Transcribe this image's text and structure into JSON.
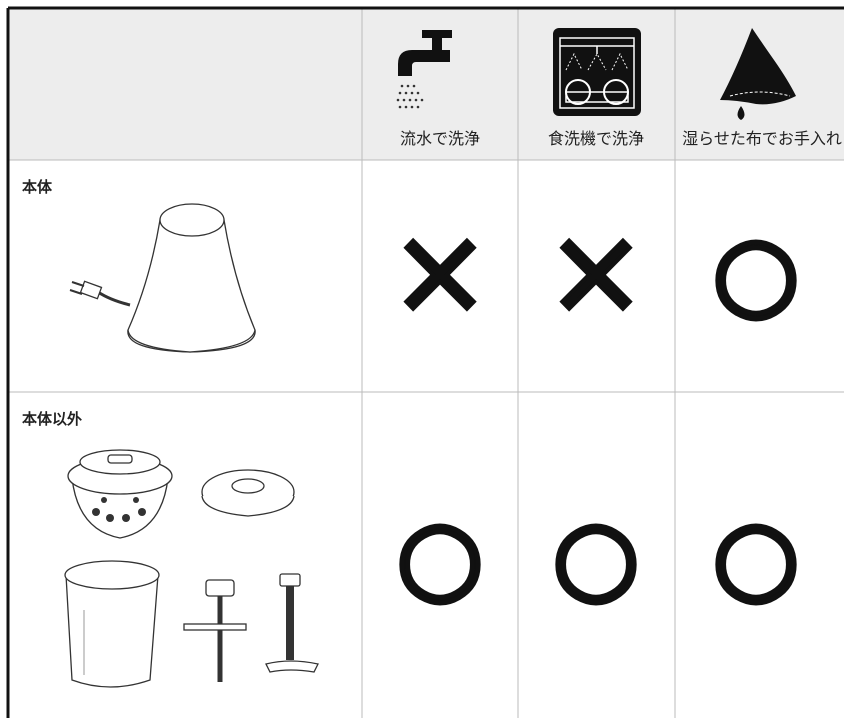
{
  "table": {
    "header": [
      "流水で洗浄",
      "食洗機で洗浄",
      "湿らせた布でお手入れ"
    ],
    "rows": [
      {
        "label": "本体",
        "cells": [
          "×",
          "×",
          "○"
        ]
      },
      {
        "label": "本体以外",
        "cells": [
          "○",
          "○",
          "○"
        ]
      }
    ]
  }
}
